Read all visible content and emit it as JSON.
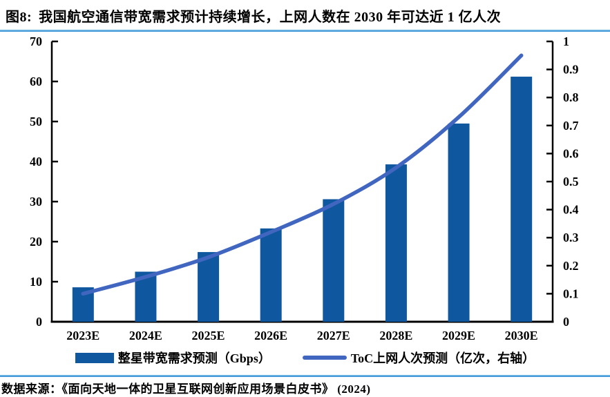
{
  "title": {
    "label": "图8:",
    "text": "我国航空通信带宽需求预计持续增长，上网人数在 2030 年可达近 1 亿人次"
  },
  "source": "数据来源：《面向天地一体的卫星互联网创新应用场景白皮书》 (2024)",
  "colors": {
    "bar": "#0f579f",
    "line": "#4066c0",
    "accent_rule": "#3690d5",
    "axis": "#000000",
    "background": "#ffffff"
  },
  "chart_data": {
    "type": "bar",
    "subtype": "combo-bar-line-dual-axis",
    "categories": [
      "2023E",
      "2024E",
      "2025E",
      "2026E",
      "2027E",
      "2028E",
      "2029E",
      "2030E"
    ],
    "series": [
      {
        "name": "整星带宽需求预测（Gbps）",
        "type": "bar",
        "axis": "left",
        "color": "#0f579f",
        "values": [
          8.6,
          12.5,
          17.4,
          23.3,
          30.6,
          39.3,
          49.5,
          61.2
        ]
      },
      {
        "name": "ToC上网人次预测（亿次，右轴）",
        "type": "line",
        "axis": "right",
        "color": "#4066c0",
        "values": [
          0.1,
          0.16,
          0.23,
          0.32,
          0.42,
          0.55,
          0.73,
          0.95
        ]
      }
    ],
    "left_axis": {
      "min": 0,
      "max": 70,
      "step": 10,
      "ticks": [
        "0",
        "10",
        "20",
        "30",
        "40",
        "50",
        "60",
        "70"
      ]
    },
    "right_axis": {
      "min": 0,
      "max": 1,
      "step": 0.1,
      "ticks": [
        "0",
        "0.1",
        "0.2",
        "0.3",
        "0.4",
        "0.5",
        "0.6",
        "0.7",
        "0.8",
        "0.9",
        "1"
      ]
    },
    "grid": false,
    "legend_position": "bottom"
  }
}
